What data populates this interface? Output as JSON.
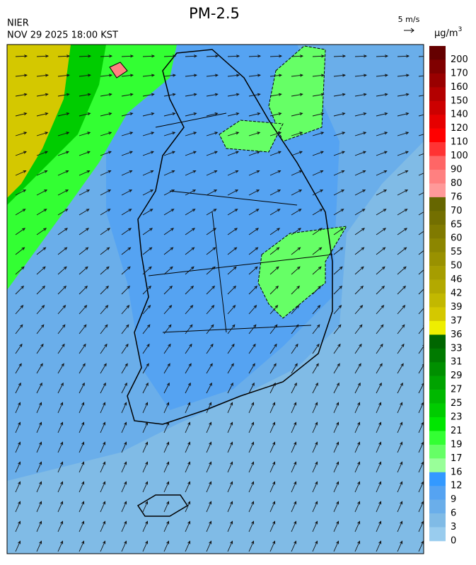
{
  "header": {
    "title": "PM-2.5",
    "source": "NIER",
    "datetime": "NOV 29 2025 18:00 KST",
    "wind_scale": "5 m/s",
    "unit": "μg/m",
    "unit_superscript": "3"
  },
  "colorbar": {
    "levels": [
      200,
      170,
      160,
      150,
      140,
      120,
      110,
      100,
      90,
      80,
      76,
      70,
      65,
      60,
      55,
      50,
      46,
      42,
      39,
      37,
      36,
      33,
      31,
      29,
      27,
      25,
      23,
      21,
      19,
      17,
      16,
      12,
      9,
      6,
      3,
      0
    ],
    "colors": [
      "#650000",
      "#800000",
      "#990000",
      "#b30000",
      "#cc0000",
      "#e60000",
      "#ff0000",
      "#ff3333",
      "#ff6666",
      "#ff8080",
      "#ff9999",
      "#666600",
      "#736f00",
      "#807a00",
      "#8c8600",
      "#999100",
      "#a69d00",
      "#b3a900",
      "#c2b800",
      "#d4c800",
      "#eeee00",
      "#006600",
      "#007a00",
      "#008f00",
      "#00a300",
      "#00b800",
      "#00cc00",
      "#00e600",
      "#33ff33",
      "#66ff66",
      "#99ff99",
      "#3399ff",
      "#55a3f2",
      "#6aaeea",
      "#80bbe6",
      "#99ccee"
    ]
  }
}
